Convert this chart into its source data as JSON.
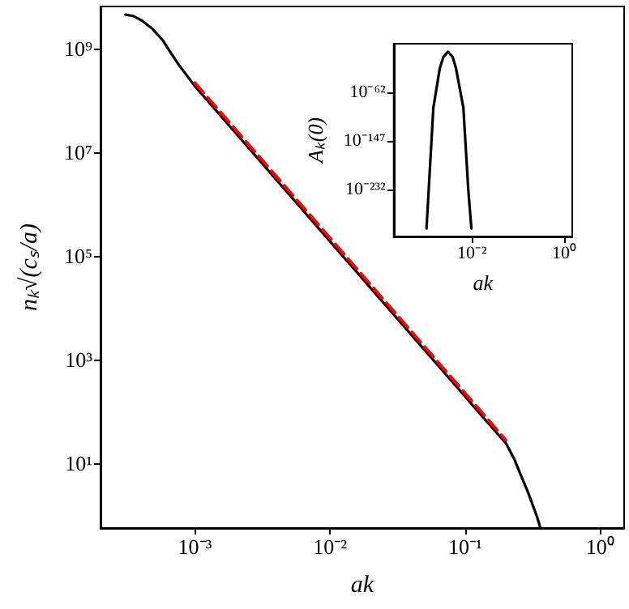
{
  "chart_data": [
    {
      "type": "line",
      "xlabel": "ak",
      "ylabel": "nₖ√(cₛ/a)",
      "log": "xy",
      "xlim": [
        0.0002,
        1.5
      ],
      "ylim": [
        0.55,
        6600000000.0
      ],
      "xticks": [
        {
          "value": 0.001,
          "label": "10⁻³"
        },
        {
          "value": 0.01,
          "label": "10⁻²"
        },
        {
          "value": 0.1,
          "label": "10⁻¹"
        },
        {
          "value": 1,
          "label": "10⁰"
        }
      ],
      "yticks": [
        {
          "value": 10,
          "label": "10¹"
        },
        {
          "value": 1000,
          "label": "10³"
        },
        {
          "value": 100000,
          "label": "10⁵"
        },
        {
          "value": 10000000,
          "label": "10⁷"
        },
        {
          "value": 1000000000,
          "label": "10⁹"
        }
      ],
      "grid": false,
      "marker": "none",
      "series": [
        {
          "color": "#000000",
          "line_style": "solid",
          "x": [
            0.000305,
            0.00035,
            0.0004,
            0.00048,
            0.00058,
            0.00066,
            0.00076,
            0.001,
            0.01,
            0.1,
            0.15,
            0.2,
            0.23,
            0.26,
            0.29,
            0.32,
            0.34,
            0.36
          ],
          "values": [
            4600000000.0,
            4300000000.0,
            3600000000.0,
            2500000000.0,
            1450000000.0,
            850000000.0,
            490000000.0,
            190000000.0,
            190000.0,
            190,
            56,
            24,
            12,
            5.5,
            2.8,
            1.4,
            0.9,
            0.55
          ]
        },
        {
          "color": "#ff0000",
          "line_style": "dashed",
          "x": [
            0.001,
            0.2
          ],
          "values": [
            220000000.0,
            27.5
          ]
        }
      ]
    },
    {
      "type": "line",
      "xlabel": "ak",
      "ylabel": "Aₖ(0)",
      "log": "xy",
      "xlim": [
        0.0002,
        1.5
      ],
      "ylim": [
        1e-314,
        1e+23
      ],
      "xticks": [
        {
          "value": 0.01,
          "label": "10⁻²"
        },
        {
          "value": 1,
          "label": "10⁰"
        }
      ],
      "yticks": [
        {
          "value": 1e-232,
          "label": "10⁻²³²"
        },
        {
          "value": 1e-147,
          "label": "10⁻¹⁴⁷"
        },
        {
          "value": 1e-62,
          "label": "10⁻⁶²"
        }
      ],
      "grid": false,
      "marker": "none",
      "series": [
        {
          "color": "#000000",
          "line_style": "solid",
          "x": [
            0.00103,
            0.00115,
            0.00145,
            0.002,
            0.0024,
            0.003,
            0.0038,
            0.0045,
            0.0065,
            0.0083,
            0.0097
          ],
          "values": [
            1e-300,
            1e-232,
            1e-89,
            1e-20,
            1,
            1000000000.0,
            1,
            1e-20,
            1e-89,
            1e-232,
            1e-300
          ]
        }
      ]
    }
  ]
}
